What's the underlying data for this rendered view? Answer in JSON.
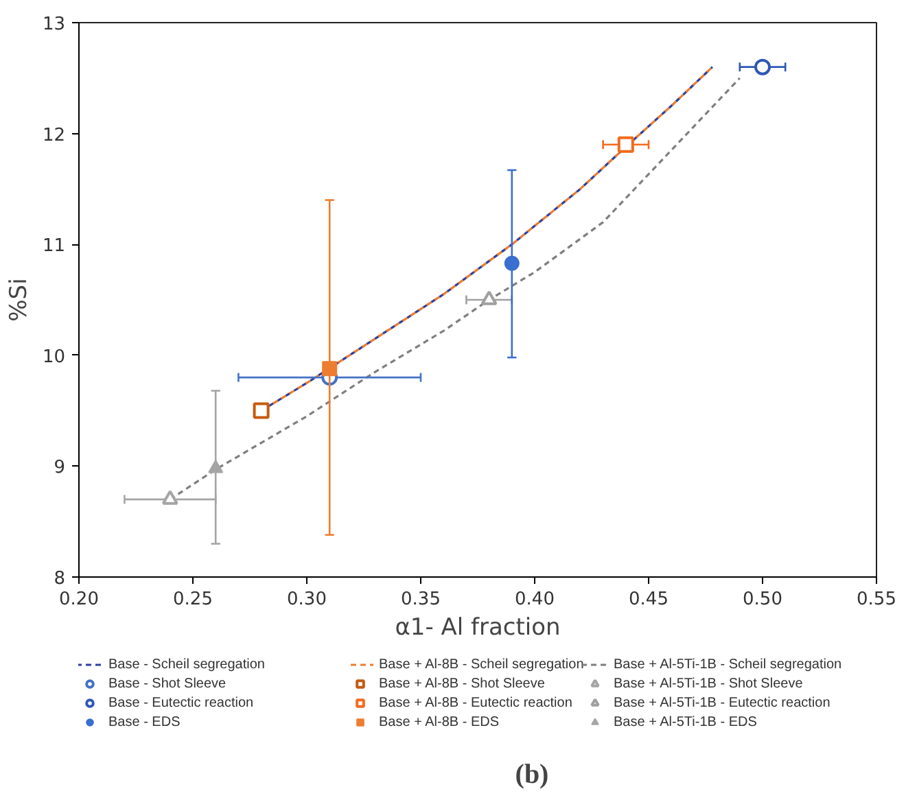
{
  "chart_data": {
    "type": "scatter",
    "xlabel": "α1- Al fraction",
    "ylabel": "%Si",
    "xlim": [
      0.2,
      0.55
    ],
    "xticks": [
      {
        "value": 0.2,
        "label": "0.20"
      },
      {
        "value": 0.25,
        "label": "0.25"
      },
      {
        "value": 0.3,
        "label": "0.30"
      },
      {
        "value": 0.35,
        "label": "0.35"
      },
      {
        "value": 0.4,
        "label": "0.40"
      },
      {
        "value": 0.45,
        "label": "0.45"
      },
      {
        "value": 0.5,
        "label": "0.50"
      },
      {
        "value": 0.55,
        "label": "0.55"
      }
    ],
    "ylim": [
      8,
      13
    ],
    "yticks": [
      8,
      9,
      10,
      11,
      12,
      13
    ],
    "grid": false,
    "legend": "bottom",
    "annotations": [
      "(b)"
    ],
    "series": [
      {
        "name": "Base - Scheil segregation",
        "type": "line",
        "line_style": "dashed",
        "marker": "none",
        "color": "#2f3f9e",
        "x": [
          0.28,
          0.3,
          0.33,
          0.36,
          0.39,
          0.42,
          0.44,
          0.46,
          0.478
        ],
        "values": [
          9.5,
          9.75,
          10.15,
          10.55,
          11.0,
          11.5,
          11.88,
          12.25,
          12.6
        ]
      },
      {
        "name": "Base + Al-8B - Scheil segregation",
        "type": "line",
        "line_style": "dashed",
        "marker": "none",
        "color": "#ed7d31",
        "x": [
          0.28,
          0.3,
          0.33,
          0.36,
          0.39,
          0.42,
          0.44,
          0.46,
          0.478
        ],
        "values": [
          9.5,
          9.75,
          10.15,
          10.55,
          11.0,
          11.5,
          11.88,
          12.25,
          12.6
        ]
      },
      {
        "name": "Base + Al-5Ti-1B - Scheil segregation",
        "type": "line",
        "line_style": "dashed",
        "marker": "none",
        "color": "#7f7f7f",
        "x": [
          0.24,
          0.26,
          0.3,
          0.33,
          0.36,
          0.38,
          0.4,
          0.43,
          0.46,
          0.49
        ],
        "values": [
          8.7,
          8.97,
          9.45,
          9.85,
          10.22,
          10.5,
          10.75,
          11.2,
          11.85,
          12.5
        ]
      },
      {
        "name": "Base - Shot Sleeve",
        "marker": "circle",
        "color": "#4472c4",
        "x": [
          0.31
        ],
        "values": [
          9.8
        ],
        "xerrors": [
          [
            0.27,
            0.35
          ]
        ]
      },
      {
        "name": "Base + Al-8B - Shot Sleeve",
        "marker": "square",
        "color": "#c55a11",
        "x": [
          0.28
        ],
        "values": [
          9.5
        ]
      },
      {
        "name": "Base + Al-5Ti-1B - Shot Sleeve",
        "marker": "triangle",
        "color": "#a5a5a5",
        "x": [
          0.24
        ],
        "values": [
          8.7
        ],
        "xerrors": [
          [
            0.22,
            0.26
          ]
        ]
      },
      {
        "name": "Base - Eutectic reaction",
        "marker": "circle",
        "color": "#2e57b8",
        "x": [
          0.5
        ],
        "values": [
          12.6
        ],
        "xerrors": [
          [
            0.49,
            0.51
          ]
        ]
      },
      {
        "name": "Base + Al-8B - Eutectic reaction",
        "marker": "square",
        "color": "#f26b1d",
        "x": [
          0.44
        ],
        "values": [
          11.9
        ],
        "xerrors": [
          [
            0.43,
            0.45
          ]
        ]
      },
      {
        "name": "Base + Al-5Ti-1B - Eutectic reaction",
        "marker": "triangle",
        "color": "#a0a0a0",
        "x": [
          0.38
        ],
        "values": [
          10.5
        ],
        "xerrors": [
          [
            0.37,
            0.39
          ]
        ]
      },
      {
        "name": "Base - EDS",
        "marker": "circle",
        "color": "#3a6fd0",
        "x": [
          0.39
        ],
        "values": [
          10.83
        ],
        "errors": [
          [
            9.98,
            11.67
          ]
        ]
      },
      {
        "name": "Base + Al-8B - EDS",
        "marker": "square",
        "color": "#ed7d31",
        "x": [
          0.31
        ],
        "values": [
          9.88
        ],
        "errors": [
          [
            8.38,
            11.4
          ]
        ]
      },
      {
        "name": "Base + Al-5Ti-1B - EDS",
        "marker": "triangle",
        "color": "#a5a5a5",
        "x": [
          0.26
        ],
        "values": [
          8.98
        ],
        "errors": [
          [
            8.3,
            9.68
          ]
        ]
      }
    ]
  }
}
